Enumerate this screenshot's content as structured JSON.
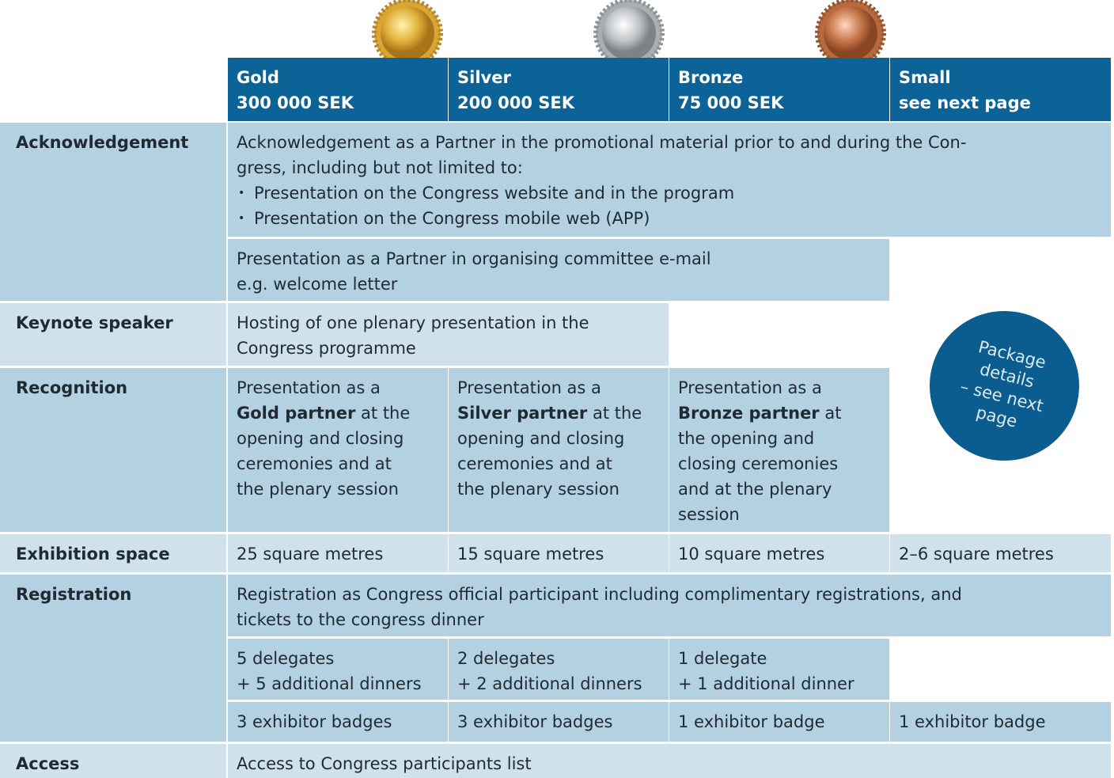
{
  "header": {
    "tiers": [
      {
        "name": "Gold",
        "price": "300 000 SEK"
      },
      {
        "name": "Silver",
        "price": "200 000 SEK"
      },
      {
        "name": "Bronze",
        "price": "75 000 SEK"
      },
      {
        "name": "Small",
        "price": "see next page"
      }
    ]
  },
  "rows": [
    {
      "label": "Acknowledgement",
      "cells": [
        {
          "lines": [
            "Acknowledgement as a Partner in the promotional material prior to and during the Con-",
            "gress, including but not limited to:"
          ],
          "bullets": [
            "Presentation on the Congress website and in the program",
            "Presentation on the Congress mobile web (APP)"
          ]
        },
        {
          "lines": [
            "Presentation as a Partner in organising committee e-mail",
            "e.g. welcome letter"
          ]
        }
      ]
    },
    {
      "label": "Keynote speaker",
      "cells": [
        {
          "lines": [
            "Hosting of one plenary presentation in the",
            "Congress programme"
          ]
        }
      ]
    },
    {
      "label": "Recognition",
      "cells": [
        {
          "lines": [
            "Presentation as a",
            [
              "Gold partner",
              " at the"
            ],
            "opening and closing",
            "ceremonies and at",
            "the plenary session"
          ]
        },
        {
          "lines": [
            "Presentation as a",
            [
              "Silver partner",
              " at the"
            ],
            "opening and closing",
            "ceremonies and at",
            "the plenary session"
          ]
        },
        {
          "lines": [
            "Presentation as a",
            [
              "Bronze partner",
              " at"
            ],
            "the opening and",
            "closing ceremonies",
            "and at the plenary",
            "session"
          ]
        }
      ]
    },
    {
      "label": "Exhibition space",
      "cells": [
        {
          "lines": [
            "25 square metres"
          ]
        },
        {
          "lines": [
            "15 square metres"
          ]
        },
        {
          "lines": [
            "10 square metres"
          ]
        },
        {
          "lines": [
            "2–6 square metres"
          ]
        }
      ]
    },
    {
      "label": "Registration",
      "cells": [
        {
          "lines": [
            "Registration as Congress official participant including complimentary registrations, and",
            "tickets to the congress dinner"
          ]
        },
        {
          "lines": [
            "5 delegates",
            "+ 5 additional dinners"
          ]
        },
        {
          "lines": [
            "2 delegates",
            "+ 2 additional dinners"
          ]
        },
        {
          "lines": [
            "1 delegate",
            "+ 1 additional dinner"
          ]
        },
        {
          "lines": [
            "3 exhibitor badges"
          ]
        },
        {
          "lines": [
            "3 exhibitor badges"
          ]
        },
        {
          "lines": [
            "1 exhibitor badge"
          ]
        },
        {
          "lines": [
            "1 exhibitor badge"
          ]
        }
      ]
    },
    {
      "label": "Access",
      "cells": [
        {
          "lines": [
            "Access to Congress participants list"
          ]
        }
      ]
    }
  ],
  "badge": {
    "lines": [
      "Package",
      "details",
      "– see next",
      "page"
    ]
  }
}
